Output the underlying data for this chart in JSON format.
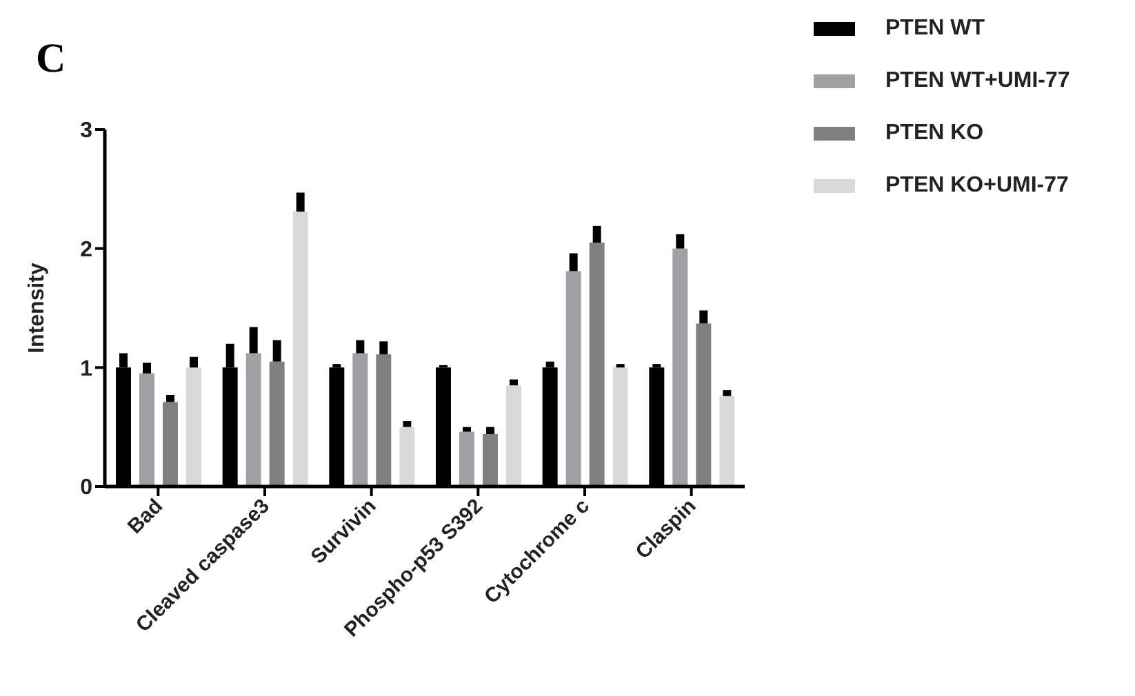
{
  "chart_data": {
    "type": "bar",
    "title": "C",
    "ylabel": "Intensity",
    "categories": [
      "Bad",
      "Cleaved caspase3",
      "Survivin",
      "Phospho-p53 S392",
      "Cytochrome c",
      "Claspin"
    ],
    "series": [
      {
        "name": "PTEN WT",
        "color": "#000000",
        "values": [
          1.0,
          1.0,
          1.0,
          1.0,
          1.0,
          1.0
        ],
        "errors": [
          [
            1.0,
            1.12
          ],
          [
            1.0,
            1.2
          ],
          [
            1.0,
            1.03
          ],
          [
            1.0,
            1.02
          ],
          [
            1.0,
            1.05
          ],
          [
            1.0,
            1.03
          ]
        ]
      },
      {
        "name": "PTEN WT+UMI-77",
        "color": "#a0a0a4",
        "values": [
          0.95,
          1.12,
          1.12,
          0.46,
          1.81,
          2.0
        ],
        "errors": [
          [
            0.95,
            1.04
          ],
          [
            1.12,
            1.34
          ],
          [
            1.12,
            1.23
          ],
          [
            0.46,
            0.5
          ],
          [
            1.81,
            1.96
          ],
          [
            2.0,
            2.12
          ]
        ]
      },
      {
        "name": "PTEN KO",
        "color": "#808080",
        "values": [
          0.71,
          1.05,
          1.11,
          0.44,
          2.05,
          1.37
        ],
        "errors": [
          [
            0.71,
            0.77
          ],
          [
            1.05,
            1.23
          ],
          [
            1.11,
            1.22
          ],
          [
            0.44,
            0.5
          ],
          [
            2.05,
            2.19
          ],
          [
            1.37,
            1.48
          ]
        ]
      },
      {
        "name": "PTEN KO+UMI-77",
        "color": "#d9d9d9",
        "values": [
          1.0,
          2.31,
          0.5,
          0.85,
          1.0,
          0.76
        ],
        "errors": [
          [
            1.0,
            1.09
          ],
          [
            2.31,
            2.47
          ],
          [
            0.5,
            0.55
          ],
          [
            0.85,
            0.9
          ],
          [
            1.0,
            1.03
          ],
          [
            0.76,
            0.81
          ]
        ]
      }
    ],
    "ylim": [
      0,
      3
    ],
    "yticks": [
      0,
      1,
      2,
      3
    ],
    "grid": false,
    "legend": "top right"
  }
}
